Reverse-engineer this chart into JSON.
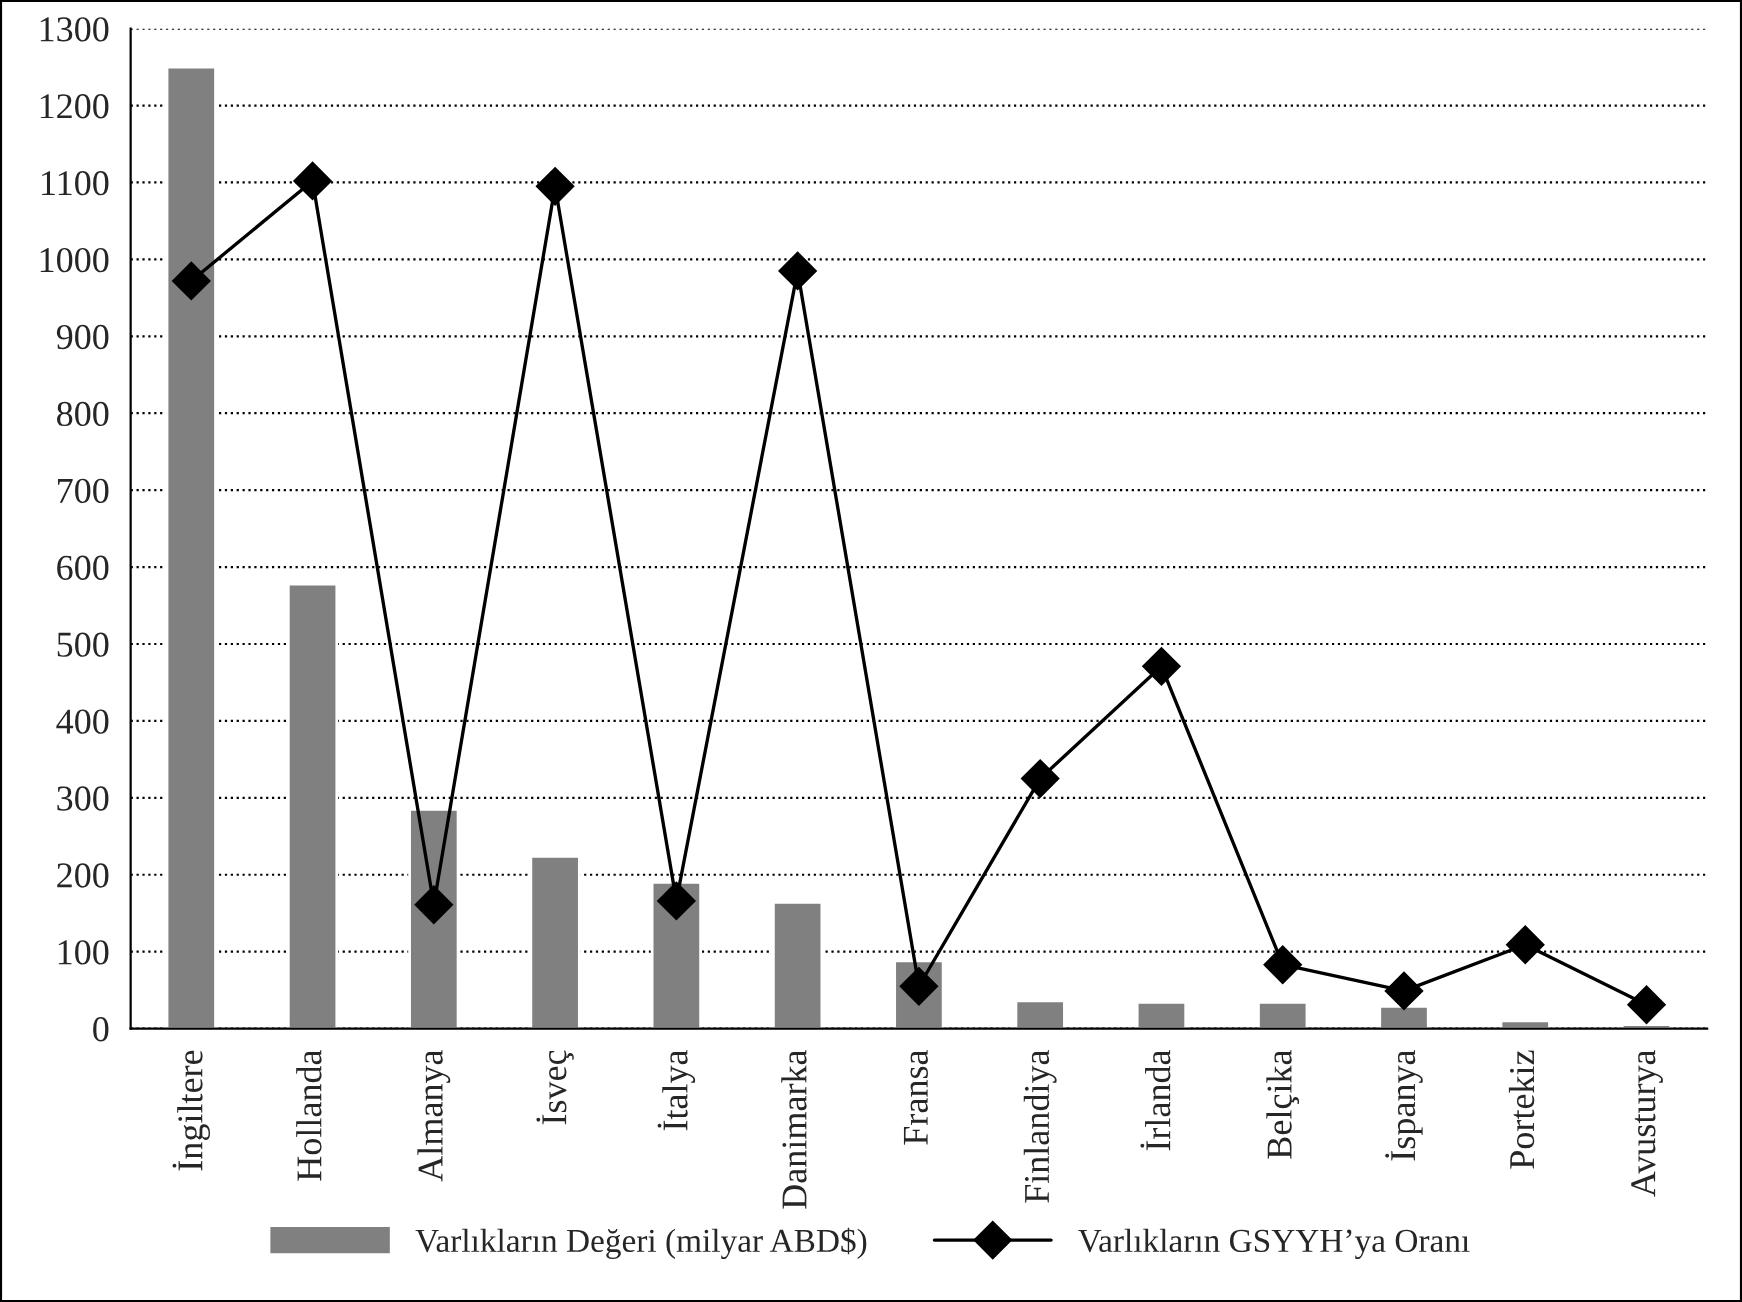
{
  "chart_data": {
    "type": "bar",
    "categories": [
      "İngiltere",
      "Hollanda",
      "Almanya",
      "İsveç",
      "İtalya",
      "Danimarka",
      "Fransa",
      "Finlandiya",
      "İrlanda",
      "Belçika",
      "İspanya",
      "Portekiz",
      "Avusturya"
    ],
    "series": [
      {
        "name": "Varlıkların Değeri (milyar ABD$)",
        "color": "#808080",
        "values": [
          1250,
          578,
          285,
          224,
          190,
          164,
          88,
          36,
          34,
          34,
          29,
          10,
          5
        ]
      },
      {
        "name": "Varlıkların GSYYH’ya Oranı",
        "type": "line",
        "color": "#000000",
        "marker": "diamond",
        "values": [
          972,
          1102,
          161,
          1095,
          166,
          985,
          55,
          325,
          471,
          83,
          49,
          109,
          31
        ]
      }
    ],
    "ylim": [
      0,
      1300
    ],
    "yticks": [
      0,
      100,
      200,
      300,
      400,
      500,
      600,
      700,
      800,
      900,
      1000,
      1100,
      1200,
      1300
    ],
    "grid": "y",
    "legend": "bottom"
  }
}
